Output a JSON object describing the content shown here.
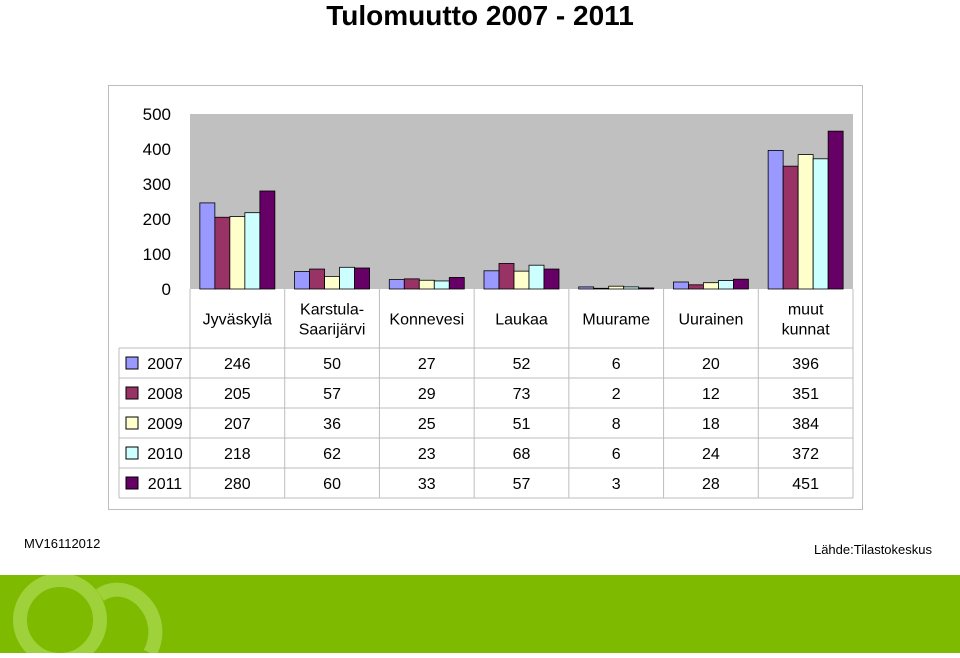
{
  "title": "Tulomuutto 2007 - 2011",
  "footer": {
    "left": "MV16112012",
    "right": "Lähde:Tilastokeskus"
  },
  "chart_data": {
    "type": "bar",
    "categories": [
      [
        "Jyväskylä"
      ],
      [
        "Karstula-",
        "Saarijärvi"
      ],
      [
        "Konnevesi"
      ],
      [
        "Laukaa"
      ],
      [
        "Muurame"
      ],
      [
        "Uurainen"
      ],
      [
        "muut",
        "kunnat"
      ]
    ],
    "series": [
      {
        "name": "2007",
        "color": "#9999ff",
        "values": [
          246,
          50,
          27,
          52,
          6,
          20,
          396
        ]
      },
      {
        "name": "2008",
        "color": "#993366",
        "values": [
          205,
          57,
          29,
          73,
          2,
          12,
          351
        ]
      },
      {
        "name": "2009",
        "color": "#ffffcc",
        "values": [
          207,
          36,
          25,
          51,
          8,
          18,
          384
        ]
      },
      {
        "name": "2010",
        "color": "#ccffff",
        "values": [
          218,
          62,
          23,
          68,
          6,
          24,
          372
        ]
      },
      {
        "name": "2011",
        "color": "#660066",
        "values": [
          280,
          60,
          33,
          57,
          3,
          28,
          451
        ]
      }
    ],
    "yticks": [
      0,
      100,
      200,
      300,
      400,
      500
    ],
    "ylim": [
      0,
      500
    ],
    "plot_background": "#c0c0c0",
    "data_table": true,
    "legend": "data-table-left"
  }
}
